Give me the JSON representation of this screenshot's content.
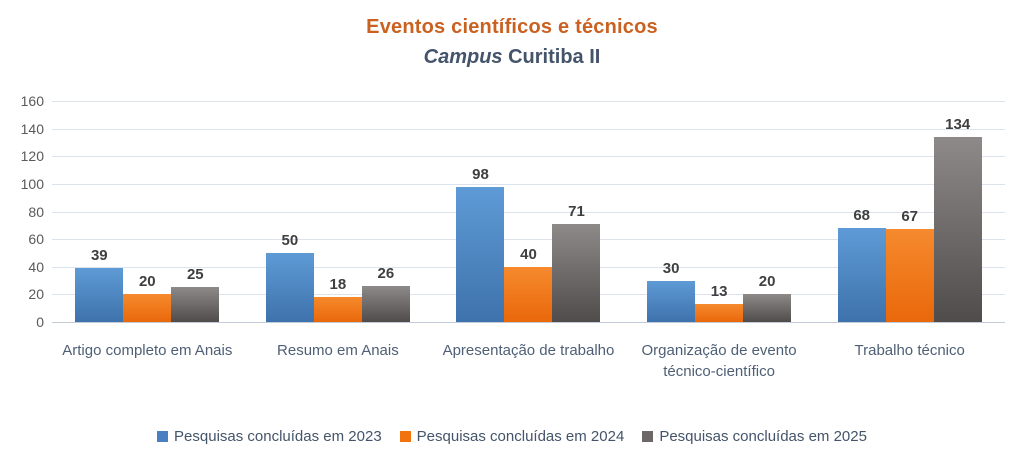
{
  "title": {
    "text": "Eventos científicos e técnicos",
    "color": "#cb6120"
  },
  "subtitle": {
    "italic_part": "Campus",
    "rest": " Curitiba II",
    "color": "#44546a"
  },
  "chart_data": {
    "type": "bar",
    "title": "Eventos científicos e técnicos",
    "subtitle": "Campus Curitiba II",
    "categories": [
      "Artigo completo em Anais",
      "Resumo em Anais",
      "Apresentação de trabalho",
      "Organização de evento técnico-científico",
      "Trabalho técnico"
    ],
    "series": [
      {
        "name": "Pesquisas concluídas em 2023",
        "values": [
          39,
          50,
          98,
          30,
          68
        ],
        "color_top": "#5e9bd6",
        "color_bottom": "#3e72ac",
        "legend_color": "#4a80c2"
      },
      {
        "name": "Pesquisas concluídas em 2024",
        "values": [
          20,
          18,
          40,
          13,
          67
        ],
        "color_top": "#f68a2e",
        "color_bottom": "#e9680a",
        "legend_color": "#f0730e"
      },
      {
        "name": "Pesquisas concluídas em 2025",
        "values": [
          25,
          26,
          71,
          20,
          134
        ],
        "color_top": "#8d8a89",
        "color_bottom": "#4f4c4b",
        "legend_color": "#6b6867"
      }
    ],
    "xlabel": "",
    "ylabel": "",
    "ylim": [
      0,
      160
    ],
    "ytick_step": 20,
    "yticks": [
      0,
      20,
      40,
      60,
      80,
      100,
      120,
      140,
      160
    ],
    "grid": true,
    "legend_position": "bottom",
    "data_labels": true
  }
}
